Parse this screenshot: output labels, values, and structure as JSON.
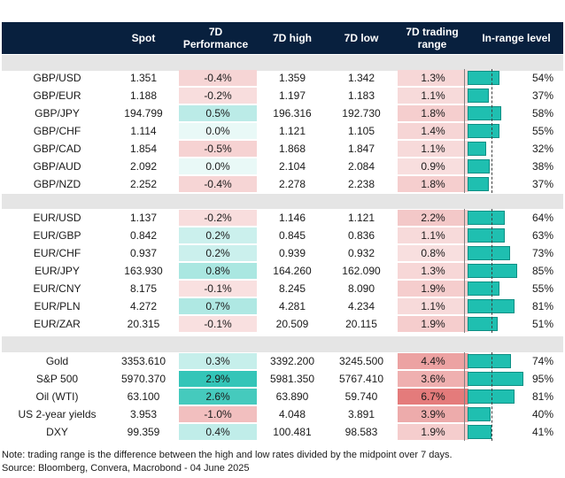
{
  "headers": {
    "spot": "Spot",
    "perf": "7D\nPerformance",
    "high": "7D high",
    "low": "7D low",
    "range": "7D trading\nrange",
    "inrange": "In-range level"
  },
  "groups": [
    {
      "rows": [
        {
          "name": "GBP/USD",
          "spot": "1.351",
          "perf": "-0.4%",
          "perf_val": -0.4,
          "high": "1.359",
          "low": "1.342",
          "range": "1.3%",
          "range_val": 1.3,
          "inrange": "54%",
          "inrange_val": 54
        },
        {
          "name": "GBP/EUR",
          "spot": "1.188",
          "perf": "-0.2%",
          "perf_val": -0.2,
          "high": "1.197",
          "low": "1.183",
          "range": "1.1%",
          "range_val": 1.1,
          "inrange": "37%",
          "inrange_val": 37
        },
        {
          "name": "GBP/JPY",
          "spot": "194.799",
          "perf": "0.5%",
          "perf_val": 0.5,
          "high": "196.316",
          "low": "192.730",
          "range": "1.8%",
          "range_val": 1.8,
          "inrange": "58%",
          "inrange_val": 58
        },
        {
          "name": "GBP/CHF",
          "spot": "1.114",
          "perf": "0.0%",
          "perf_val": 0.0,
          "high": "1.121",
          "low": "1.105",
          "range": "1.4%",
          "range_val": 1.4,
          "inrange": "55%",
          "inrange_val": 55
        },
        {
          "name": "GBP/CAD",
          "spot": "1.854",
          "perf": "-0.5%",
          "perf_val": -0.5,
          "high": "1.868",
          "low": "1.847",
          "range": "1.1%",
          "range_val": 1.1,
          "inrange": "32%",
          "inrange_val": 32
        },
        {
          "name": "GBP/AUD",
          "spot": "2.092",
          "perf": "0.0%",
          "perf_val": 0.0,
          "high": "2.104",
          "low": "2.084",
          "range": "0.9%",
          "range_val": 0.9,
          "inrange": "38%",
          "inrange_val": 38
        },
        {
          "name": "GBP/NZD",
          "spot": "2.252",
          "perf": "-0.4%",
          "perf_val": -0.4,
          "high": "2.278",
          "low": "2.238",
          "range": "1.8%",
          "range_val": 1.8,
          "inrange": "37%",
          "inrange_val": 37
        }
      ]
    },
    {
      "rows": [
        {
          "name": "EUR/USD",
          "spot": "1.137",
          "perf": "-0.2%",
          "perf_val": -0.2,
          "high": "1.146",
          "low": "1.121",
          "range": "2.2%",
          "range_val": 2.2,
          "inrange": "64%",
          "inrange_val": 64
        },
        {
          "name": "EUR/GBP",
          "spot": "0.842",
          "perf": "0.2%",
          "perf_val": 0.2,
          "high": "0.845",
          "low": "0.836",
          "range": "1.1%",
          "range_val": 1.1,
          "inrange": "63%",
          "inrange_val": 63
        },
        {
          "name": "EUR/CHF",
          "spot": "0.937",
          "perf": "0.2%",
          "perf_val": 0.2,
          "high": "0.939",
          "low": "0.932",
          "range": "0.8%",
          "range_val": 0.8,
          "inrange": "73%",
          "inrange_val": 73
        },
        {
          "name": "EUR/JPY",
          "spot": "163.930",
          "perf": "0.8%",
          "perf_val": 0.8,
          "high": "164.260",
          "low": "162.090",
          "range": "1.3%",
          "range_val": 1.3,
          "inrange": "85%",
          "inrange_val": 85
        },
        {
          "name": "EUR/CNY",
          "spot": "8.175",
          "perf": "-0.1%",
          "perf_val": -0.1,
          "high": "8.245",
          "low": "8.090",
          "range": "1.9%",
          "range_val": 1.9,
          "inrange": "55%",
          "inrange_val": 55
        },
        {
          "name": "EUR/PLN",
          "spot": "4.272",
          "perf": "0.7%",
          "perf_val": 0.7,
          "high": "4.281",
          "low": "4.234",
          "range": "1.1%",
          "range_val": 1.1,
          "inrange": "81%",
          "inrange_val": 81
        },
        {
          "name": "EUR/ZAR",
          "spot": "20.315",
          "perf": "-0.1%",
          "perf_val": -0.1,
          "high": "20.509",
          "low": "20.115",
          "range": "1.9%",
          "range_val": 1.9,
          "inrange": "51%",
          "inrange_val": 51
        }
      ]
    },
    {
      "rows": [
        {
          "name": "Gold",
          "spot": "3353.610",
          "perf": "0.3%",
          "perf_val": 0.3,
          "high": "3392.200",
          "low": "3245.500",
          "range": "4.4%",
          "range_val": 4.4,
          "inrange": "74%",
          "inrange_val": 74
        },
        {
          "name": "S&P 500",
          "spot": "5970.370",
          "perf": "2.9%",
          "perf_val": 2.9,
          "high": "5981.350",
          "low": "5767.410",
          "range": "3.6%",
          "range_val": 3.6,
          "inrange": "95%",
          "inrange_val": 95
        },
        {
          "name": "Oil (WTI)",
          "spot": "63.100",
          "perf": "2.6%",
          "perf_val": 2.6,
          "high": "63.890",
          "low": "59.740",
          "range": "6.7%",
          "range_val": 6.7,
          "inrange": "81%",
          "inrange_val": 81
        },
        {
          "name": "US 2-year yields",
          "spot": "3.953",
          "perf": "-1.0%",
          "perf_val": -1.0,
          "high": "4.048",
          "low": "3.891",
          "range": "3.9%",
          "range_val": 3.9,
          "inrange": "40%",
          "inrange_val": 40
        },
        {
          "name": "DXY",
          "spot": "99.359",
          "perf": "0.4%",
          "perf_val": 0.4,
          "high": "100.481",
          "low": "98.583",
          "range": "1.9%",
          "range_val": 1.9,
          "inrange": "41%",
          "inrange_val": 41
        }
      ]
    }
  ],
  "colors": {
    "header_bg": "#08203e",
    "gap_bg": "#e5e5e5",
    "positive": "#1fbfb0",
    "negative": "#e06a6a",
    "range": "#e06a6a",
    "bar": "#1fbfb0"
  },
  "notes": {
    "line1": "Note: trading range is the difference between the high and low rates divided by the midpoint over 7 days.",
    "line2": "Source: Bloomberg, Convera, Macrobond - 04 June 2025"
  }
}
